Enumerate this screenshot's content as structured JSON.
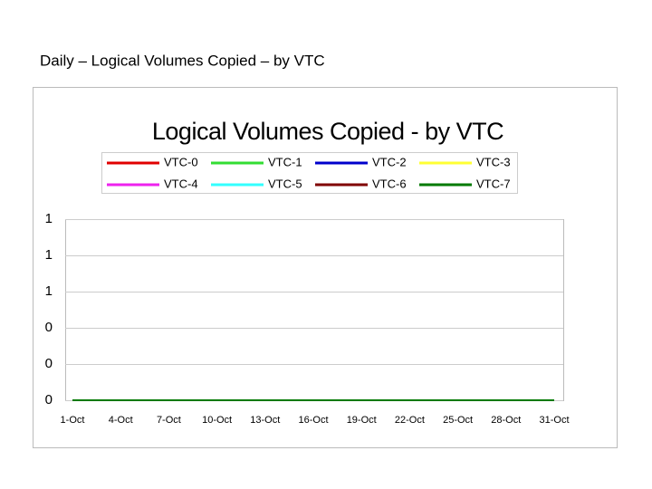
{
  "page_title": "Daily – Logical Volumes Copied – by VTC",
  "chart_data": {
    "type": "line",
    "title": "Logical Volumes Copied - by VTC",
    "categories": [
      "1-Oct",
      null,
      null,
      "4-Oct",
      null,
      null,
      "7-Oct",
      null,
      null,
      "10-Oct",
      null,
      null,
      "13-Oct",
      null,
      null,
      "16-Oct",
      null,
      null,
      "19-Oct",
      null,
      null,
      "22-Oct",
      null,
      null,
      "25-Oct",
      null,
      null,
      "28-Oct",
      null,
      null,
      "31-Oct"
    ],
    "series": [
      {
        "name": "VTC-0",
        "color": "#e00000",
        "values": [
          0,
          0,
          0,
          0,
          0,
          0,
          0,
          0,
          0,
          0,
          0,
          0,
          0,
          0,
          0,
          0,
          0,
          0,
          0,
          0,
          0,
          0,
          0,
          0,
          0,
          0,
          0,
          0,
          0,
          0,
          0
        ]
      },
      {
        "name": "VTC-1",
        "color": "#33dd33",
        "values": [
          0,
          0,
          0,
          0,
          0,
          0,
          0,
          0,
          0,
          0,
          0,
          0,
          0,
          0,
          0,
          0,
          0,
          0,
          0,
          0,
          0,
          0,
          0,
          0,
          0,
          0,
          0,
          0,
          0,
          0,
          0
        ]
      },
      {
        "name": "VTC-2",
        "color": "#0000cc",
        "values": [
          0,
          0,
          0,
          0,
          0,
          0,
          0,
          0,
          0,
          0,
          0,
          0,
          0,
          0,
          0,
          0,
          0,
          0,
          0,
          0,
          0,
          0,
          0,
          0,
          0,
          0,
          0,
          0,
          0,
          0,
          0
        ]
      },
      {
        "name": "VTC-3",
        "color": "#ffff33",
        "values": [
          0,
          0,
          0,
          0,
          0,
          0,
          0,
          0,
          0,
          0,
          0,
          0,
          0,
          0,
          0,
          0,
          0,
          0,
          0,
          0,
          0,
          0,
          0,
          0,
          0,
          0,
          0,
          0,
          0,
          0,
          0
        ]
      },
      {
        "name": "VTC-4",
        "color": "#ee22ee",
        "values": [
          0,
          0,
          0,
          0,
          0,
          0,
          0,
          0,
          0,
          0,
          0,
          0,
          0,
          0,
          0,
          0,
          0,
          0,
          0,
          0,
          0,
          0,
          0,
          0,
          0,
          0,
          0,
          0,
          0,
          0,
          0
        ]
      },
      {
        "name": "VTC-5",
        "color": "#33ffff",
        "values": [
          0,
          0,
          0,
          0,
          0,
          0,
          0,
          0,
          0,
          0,
          0,
          0,
          0,
          0,
          0,
          0,
          0,
          0,
          0,
          0,
          0,
          0,
          0,
          0,
          0,
          0,
          0,
          0,
          0,
          0,
          0
        ]
      },
      {
        "name": "VTC-6",
        "color": "#800000",
        "values": [
          0,
          0,
          0,
          0,
          0,
          0,
          0,
          0,
          0,
          0,
          0,
          0,
          0,
          0,
          0,
          0,
          0,
          0,
          0,
          0,
          0,
          0,
          0,
          0,
          0,
          0,
          0,
          0,
          0,
          0,
          0
        ]
      },
      {
        "name": "VTC-7",
        "color": "#007a00",
        "values": [
          0,
          0,
          0,
          0,
          0,
          0,
          0,
          0,
          0,
          0,
          0,
          0,
          0,
          0,
          0,
          0,
          0,
          0,
          0,
          0,
          0,
          0,
          0,
          0,
          0,
          0,
          0,
          0,
          0,
          0,
          0
        ]
      }
    ],
    "ylim": [
      0,
      1
    ],
    "yticks": [
      0,
      {
        "value": 0.2,
        "label": "0"
      },
      {
        "value": 0.4,
        "label": "0"
      },
      {
        "value": 0.6,
        "label": "1"
      },
      {
        "value": 0.8,
        "label": "1"
      },
      1
    ],
    "grid": true,
    "legend": "top"
  }
}
